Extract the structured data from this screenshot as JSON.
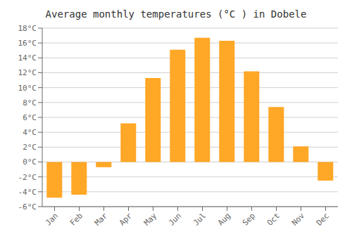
{
  "chart_data": {
    "type": "bar",
    "title": "Average monthly temperatures (°C ) in Dobele",
    "categories": [
      "Jan",
      "Feb",
      "Mar",
      "Apr",
      "May",
      "Jun",
      "Jul",
      "Aug",
      "Sep",
      "Oct",
      "Nov",
      "Dec"
    ],
    "values": [
      -4.8,
      -4.4,
      -0.7,
      5.2,
      11.3,
      15.1,
      16.7,
      16.3,
      12.2,
      7.4,
      2.1,
      -2.5
    ],
    "color": "#FFA726",
    "ylim": [
      -6,
      18
    ],
    "yticks": [
      {
        "value": -6,
        "label": "-6°C"
      },
      {
        "value": -4,
        "label": "-4°C"
      },
      {
        "value": -2,
        "label": "-2°C"
      },
      {
        "value": 0,
        "label": "0°C"
      },
      {
        "value": 2,
        "label": "2°C"
      },
      {
        "value": 4,
        "label": "4°C"
      },
      {
        "value": 6,
        "label": "6°C"
      },
      {
        "value": 8,
        "label": "8°C"
      },
      {
        "value": 10,
        "label": "10°C"
      },
      {
        "value": 12,
        "label": "12°C"
      },
      {
        "value": 14,
        "label": "14°C"
      },
      {
        "value": 16,
        "label": "16°C"
      },
      {
        "value": 18,
        "label": "18°C"
      }
    ],
    "grid": true
  }
}
